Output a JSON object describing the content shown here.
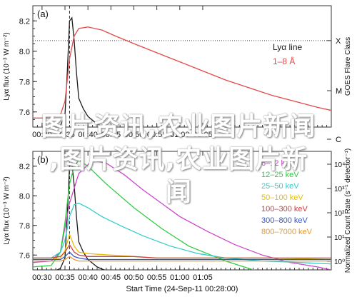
{
  "chart_data": [
    {
      "panel": "(a)",
      "type": "line",
      "ylabel": "Lyα flux (10⁻³ W m⁻²)",
      "ylabel_right": "GOES Flare Class",
      "yticks": [
        "7.6",
        "7.8",
        "8.0",
        "8.2"
      ],
      "ylim": [
        7.5,
        8.3
      ],
      "xticks": [
        "00:30",
        "00:35",
        "00:40",
        "00:45",
        "00:50",
        "00:55",
        "01:00",
        "01:05"
      ],
      "xlim_min": [
        28,
        93
      ],
      "right_ticks": [
        "X",
        "M",
        "C"
      ],
      "right_tick_levels": [
        8.07,
        7.74,
        7.42
      ],
      "dashed_level": 8.07,
      "vline_min": 36,
      "legend": {
        "position": "top-right",
        "title": "Lyα line",
        "entries": [
          "Lyα line",
          "1–8 Å"
        ]
      },
      "series": [
        {
          "name": "Lyα line",
          "color": "#1a1a1a",
          "x_min": [
            28,
            32,
            34,
            35,
            35.5,
            36,
            36.5,
            37,
            37.5,
            38,
            39,
            40,
            42,
            45,
            50,
            55,
            60,
            70,
            80,
            93
          ],
          "values": [
            7.48,
            7.48,
            7.51,
            7.58,
            7.86,
            8.2,
            8.22,
            8.07,
            7.86,
            7.69,
            7.62,
            7.57,
            7.52,
            7.48,
            7.46,
            7.45,
            7.45,
            7.44,
            7.44,
            7.43
          ]
        },
        {
          "name": "1–8 Å",
          "color": "#e24a4a",
          "x_min": [
            28,
            32,
            34,
            35,
            36,
            37,
            38,
            40,
            43,
            46,
            50,
            55,
            60,
            65,
            70,
            75,
            80,
            85,
            90,
            93
          ],
          "values": [
            7.56,
            7.56,
            7.58,
            7.67,
            7.95,
            8.1,
            8.15,
            8.16,
            8.14,
            8.1,
            8.05,
            7.99,
            7.93,
            7.87,
            7.81,
            7.76,
            7.71,
            7.67,
            7.63,
            7.61
          ]
        }
      ]
    },
    {
      "panel": "(b)",
      "type": "line",
      "ylabel": "Lyα flux (10⁻³ W m⁻²)",
      "ylabel_right": "Normalized Count Rate (s⁻¹ detector⁻¹)",
      "xlabel": "Start Time (24-Sep-11 00:28:00)",
      "yticks": [
        "7.6",
        "7.8",
        "8.0",
        "8.2"
      ],
      "ylim": [
        7.5,
        8.3
      ],
      "right_ticks": [
        "10⁴",
        "10³",
        "10²",
        "10¹",
        "10⁰"
      ],
      "xticks": [
        "00:30",
        "00:35",
        "00:40",
        "00:45",
        "00:50",
        "00:55",
        "01:00",
        "01:05"
      ],
      "xlim_min": [
        28,
        93
      ],
      "vline_min": 36,
      "legend": {
        "position": "top-right",
        "entries": [
          "6–12 keV",
          "12–25 keV",
          "25–50 keV",
          "50–100 keV",
          "100–300 keV",
          "300–800 keV",
          "800–7000 keV"
        ]
      },
      "series": [
        {
          "name": "Lyα line",
          "color": "#1a1a1a",
          "x_min": [
            28,
            32,
            34,
            35,
            35.5,
            36,
            36.5,
            37,
            37.5,
            38,
            39,
            40,
            42,
            45,
            50,
            55,
            60,
            70,
            80,
            93
          ],
          "values": [
            7.48,
            7.48,
            7.51,
            7.58,
            7.86,
            8.2,
            8.22,
            8.07,
            7.86,
            7.69,
            7.62,
            7.57,
            7.52,
            7.48,
            7.46,
            7.45,
            7.45,
            7.44,
            7.44,
            7.43
          ]
        },
        {
          "name": "6–12 keV",
          "color": "#cc44cc",
          "x_min": [
            28,
            32,
            34,
            36,
            38,
            41,
            44,
            48,
            52,
            56,
            60,
            66,
            72,
            78,
            84,
            90,
            93
          ],
          "values": [
            7.55,
            7.56,
            7.62,
            7.95,
            8.15,
            8.24,
            8.22,
            8.14,
            8.04,
            7.95,
            7.86,
            7.76,
            7.67,
            7.6,
            7.55,
            7.52,
            7.5
          ]
        },
        {
          "name": "12–25 keV",
          "color": "#2ecc40",
          "x_min": [
            28,
            32,
            34,
            35,
            36,
            37,
            38,
            40,
            44,
            50,
            56,
            62,
            70,
            78,
            86,
            93
          ],
          "values": [
            7.52,
            7.53,
            7.62,
            7.82,
            8.08,
            8.2,
            8.24,
            8.2,
            8.08,
            7.92,
            7.78,
            7.66,
            7.56,
            7.48,
            7.42,
            7.38
          ]
        },
        {
          "name": "25–50 keV",
          "color": "#33cccc",
          "x_min": [
            28,
            32,
            34,
            35,
            36,
            37,
            38,
            40,
            43,
            47,
            52,
            58,
            64,
            70,
            78,
            86,
            93
          ],
          "values": [
            7.58,
            7.58,
            7.62,
            7.7,
            7.86,
            7.94,
            7.95,
            7.92,
            7.86,
            7.8,
            7.73,
            7.66,
            7.61,
            7.58,
            7.56,
            7.55,
            7.54
          ]
        },
        {
          "name": "50–100 keV",
          "color": "#e8c000",
          "x_min": [
            28,
            32,
            34,
            35,
            36,
            37,
            38,
            40,
            45,
            50,
            55,
            60,
            70,
            80,
            93
          ],
          "values": [
            7.57,
            7.57,
            7.58,
            7.63,
            7.74,
            7.66,
            7.62,
            7.61,
            7.6,
            7.59,
            7.58,
            7.58,
            7.58,
            7.58,
            7.57
          ]
        },
        {
          "name": "100–300 keV",
          "color": "#d04040",
          "x_min": [
            28,
            32,
            34,
            35,
            36,
            37,
            38,
            40,
            45,
            50,
            55,
            60,
            70,
            80,
            93
          ],
          "values": [
            7.58,
            7.58,
            7.59,
            7.62,
            7.67,
            7.62,
            7.6,
            7.59,
            7.59,
            7.59,
            7.58,
            7.58,
            7.58,
            7.58,
            7.58
          ]
        },
        {
          "name": "300–800 keV",
          "color": "#3355cc",
          "x_min": [
            28,
            32,
            34,
            35,
            36,
            37,
            38,
            40,
            45,
            50,
            55,
            60,
            70,
            80,
            93
          ],
          "values": [
            7.57,
            7.57,
            7.57,
            7.59,
            7.62,
            7.59,
            7.58,
            7.57,
            7.57,
            7.57,
            7.57,
            7.57,
            7.57,
            7.57,
            7.57
          ]
        },
        {
          "name": "800–7000 keV",
          "color": "#e69a30",
          "x_min": [
            28,
            32,
            34,
            35,
            36,
            37,
            38,
            40,
            45,
            50,
            55,
            60,
            70,
            80,
            93
          ],
          "values": [
            7.56,
            7.56,
            7.56,
            7.57,
            7.59,
            7.57,
            7.56,
            7.56,
            7.56,
            7.56,
            7.56,
            7.56,
            7.56,
            7.56,
            7.56
          ]
        }
      ]
    }
  ],
  "overlay_text": {
    "line1": "图片资讯,农业图片新闻",
    "line2": ",图片资讯,农业图片新",
    "line3": "闻"
  }
}
